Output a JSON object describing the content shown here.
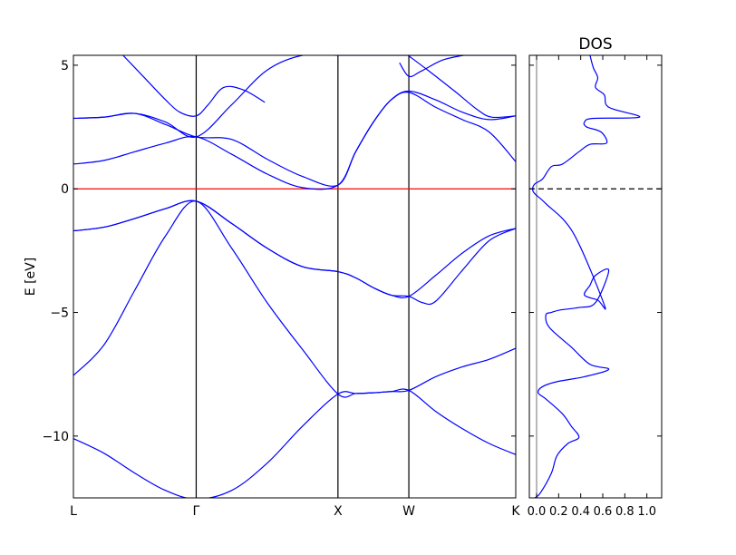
{
  "chart_data": [
    {
      "type": "line",
      "title": "",
      "ylabel": "E [eV]",
      "xlabel": "",
      "ylim": [
        -12.5,
        5.4
      ],
      "kpoint_labels": [
        "L",
        "Γ",
        "X",
        "W",
        "K"
      ],
      "kpoint_positions": [
        0,
        0.866,
        1.866,
        2.366,
        3.12
      ],
      "yticks": [
        5,
        0,
        -5,
        -10
      ],
      "ytick_labels": [
        "5",
        "0",
        "−5",
        "−10"
      ],
      "fermi_level": 0,
      "line_color": "#0000ff",
      "fermi_color": "#ff0000",
      "series": [
        {
          "x": [
            0,
            0.217,
            0.433,
            0.65,
            0.866,
            1.116,
            1.366,
            1.616,
            1.866,
            1.991,
            2.116,
            2.241,
            2.366,
            2.555,
            2.743,
            2.932,
            3.12
          ],
          "y": [
            -10.1,
            -10.7,
            -11.5,
            -12.2,
            -12.55,
            -12.2,
            -11.1,
            -9.6,
            -8.3,
            -8.28,
            -8.25,
            -8.2,
            -8.15,
            -9.0,
            -9.7,
            -10.3,
            -10.75
          ]
        },
        {
          "x": [
            0,
            0.217,
            0.433,
            0.65,
            0.866,
            1.116,
            1.366,
            1.616,
            1.866,
            1.991,
            2.116,
            2.241,
            2.366,
            2.555,
            2.743,
            2.932,
            3.12
          ],
          "y": [
            -7.55,
            -6.3,
            -4.1,
            -1.9,
            -0.5,
            -2.4,
            -4.6,
            -6.5,
            -8.3,
            -8.28,
            -8.25,
            -8.2,
            -8.15,
            -7.6,
            -7.2,
            -6.9,
            -6.45
          ]
        },
        {
          "x": [
            0,
            0.217,
            0.433,
            0.65,
            0.866,
            1.116,
            1.366,
            1.616,
            1.866,
            1.991,
            2.116,
            2.241,
            2.366,
            2.46,
            2.555,
            2.743,
            2.932,
            3.12
          ],
          "y": [
            -1.7,
            -1.55,
            -1.2,
            -0.8,
            -0.5,
            -1.4,
            -2.4,
            -3.15,
            -3.35,
            -3.6,
            -4.0,
            -4.3,
            -4.35,
            -4.6,
            -4.55,
            -3.3,
            -2.1,
            -1.6
          ]
        },
        {
          "x": [
            0,
            0.217,
            0.433,
            0.65,
            0.866,
            1.116,
            1.366,
            1.616,
            1.866,
            1.991,
            2.116,
            2.241,
            2.366,
            2.555,
            2.743,
            2.932,
            3.12
          ],
          "y": [
            -1.7,
            -1.55,
            -1.2,
            -0.8,
            -0.5,
            -1.4,
            -2.4,
            -3.15,
            -3.35,
            -3.6,
            -4.0,
            -4.3,
            -4.35,
            -3.5,
            -2.6,
            -1.9,
            -1.6
          ]
        },
        {
          "x": [
            0,
            0.217,
            0.433,
            0.65,
            0.866,
            1.116,
            1.366,
            1.616,
            1.866,
            1.991,
            2.116,
            2.241,
            2.366,
            2.555,
            2.743,
            2.932,
            3.12
          ],
          "y": [
            1.0,
            1.15,
            1.5,
            1.85,
            2.1,
            1.4,
            0.6,
            0.05,
            0.15,
            1.5,
            2.7,
            3.6,
            3.9,
            3.3,
            2.8,
            2.3,
            1.1
          ]
        },
        {
          "x": [
            0,
            0.217,
            0.433,
            0.65,
            0.866,
            1.116,
            1.366,
            1.616,
            1.866,
            1.991,
            2.116,
            2.241,
            2.366,
            2.555,
            2.743,
            2.932,
            3.12
          ],
          "y": [
            2.85,
            2.9,
            3.05,
            2.7,
            2.1,
            3.4,
            4.8,
            5.4,
            5.4,
            5.4,
            5.4,
            5.4,
            5.4,
            5.4,
            5.4,
            5.4,
            5.4
          ]
        },
        {
          "x": [
            0,
            0.217,
            0.433,
            0.65,
            0.866,
            1.116,
            1.366,
            1.616,
            1.866,
            1.991,
            2.116,
            2.241,
            2.366,
            2.555,
            2.743,
            2.932,
            3.12
          ],
          "y": [
            2.85,
            2.9,
            3.05,
            2.6,
            2.1,
            2.0,
            1.2,
            0.5,
            0.15,
            1.5,
            2.7,
            3.6,
            3.95,
            3.6,
            3.1,
            2.8,
            2.95
          ]
        },
        {
          "x": [
            0.35,
            0.5,
            0.65,
            0.75,
            0.866,
            0.95,
            1.06,
            1.2,
            1.35
          ],
          "y": [
            5.4,
            4.5,
            3.6,
            3.1,
            2.95,
            3.4,
            4.1,
            4.0,
            3.5
          ]
        },
        {
          "x": [
            2.3,
            2.366,
            2.45,
            2.6,
            2.75
          ],
          "y": [
            5.1,
            4.55,
            4.75,
            5.2,
            5.4
          ]
        },
        {
          "x": [
            2.36,
            2.5,
            2.7,
            2.85,
            2.95,
            3.12
          ],
          "y": [
            5.4,
            4.8,
            3.9,
            3.2,
            2.9,
            2.95
          ]
        }
      ]
    },
    {
      "type": "line",
      "title": "DOS",
      "xlabel": "",
      "ylabel": "",
      "xlim": [
        0,
        1.2
      ],
      "ylim": [
        -12.5,
        5.4
      ],
      "xticks": [
        0.0,
        0.2,
        0.4,
        0.6,
        0.8,
        1.0
      ],
      "xtick_labels": [
        "0.0",
        "0.2",
        "0.4",
        "0.6",
        "0.8",
        "1.0"
      ],
      "fermi_level": 0,
      "line_color": "#0000ff",
      "fermi_color": "#000000",
      "baseline_color": "#888888",
      "series": [
        {
          "name": "DOS",
          "x": [
            0.05,
            0.1,
            0.2,
            0.25,
            0.35,
            0.45,
            0.38,
            0.3,
            0.15,
            0.08,
            0.12,
            0.25,
            0.5,
            0.72,
            0.55,
            0.38,
            0.18,
            0.15,
            0.2,
            0.28,
            0.45,
            0.6,
            0.72,
            0.6,
            0.55,
            0.5,
            0.62,
            0.68,
            0.4,
            0.15,
            0.05,
            0.03,
            0.05,
            0.12,
            0.2,
            0.3,
            0.45,
            0.55,
            0.7,
            0.65,
            0.52,
            0.5,
            0.58,
            1.0,
            0.72,
            0.68,
            0.6,
            0.62,
            0.58,
            0.55
          ],
          "y": [
            -12.5,
            -12.3,
            -11.5,
            -10.8,
            -10.3,
            -10.05,
            -9.6,
            -9.1,
            -8.5,
            -8.25,
            -8.0,
            -7.8,
            -7.6,
            -7.3,
            -7.1,
            -6.4,
            -5.6,
            -5.1,
            -5.0,
            -4.9,
            -4.8,
            -4.6,
            -3.3,
            -3.5,
            -3.9,
            -4.3,
            -4.5,
            -4.7,
            -1.8,
            -0.6,
            -0.2,
            0.0,
            0.2,
            0.4,
            0.9,
            1.0,
            1.5,
            1.8,
            1.85,
            2.3,
            2.5,
            2.7,
            2.85,
            2.9,
            3.3,
            3.8,
            4.1,
            4.5,
            4.9,
            5.4
          ]
        }
      ]
    }
  ]
}
